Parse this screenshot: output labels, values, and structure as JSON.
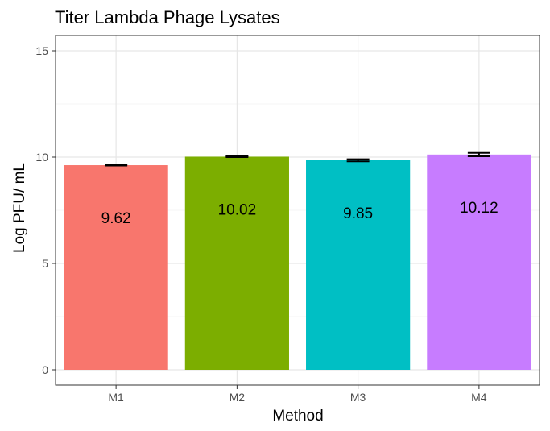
{
  "chart_data": {
    "type": "bar",
    "title": "Titer Lambda Phage Lysates",
    "xlabel": "Method",
    "ylabel": "Log PFU/ mL",
    "categories": [
      "M1",
      "M2",
      "M3",
      "M4"
    ],
    "values": [
      9.62,
      10.02,
      9.85,
      10.12
    ],
    "value_labels": [
      "9.62",
      "10.02",
      "9.85",
      "10.12"
    ],
    "error": [
      0.02,
      0.02,
      0.05,
      0.08
    ],
    "colors": [
      "#F8766D",
      "#7CAE00",
      "#00BFC4",
      "#C77CFF"
    ],
    "ylim": [
      0,
      15.8
    ],
    "yticks": [
      0,
      5,
      10,
      15
    ],
    "ytick_labels": [
      "0",
      "5",
      "10",
      "15"
    ],
    "grid": true,
    "legend": "none"
  }
}
